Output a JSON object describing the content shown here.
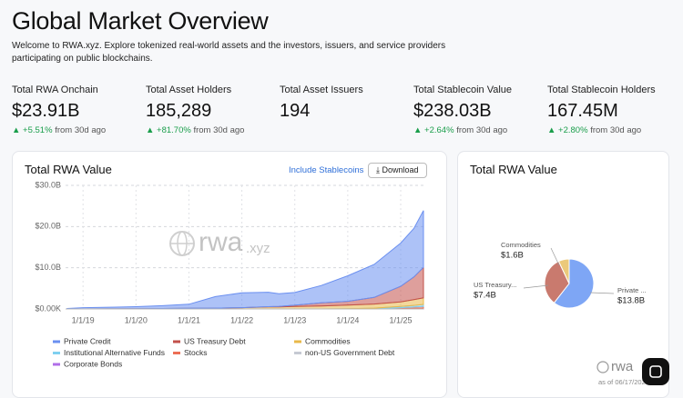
{
  "header": {
    "title": "Global Market Overview",
    "subtitle": "Welcome to RWA.xyz. Explore tokenized real-world assets and the investors, issuers, and service providers participating on public blockchains."
  },
  "stats": [
    {
      "label": "Total RWA Onchain",
      "value": "$23.91B",
      "change": "+5.51%",
      "period": "from 30d ago"
    },
    {
      "label": "Total Asset Holders",
      "value": "185,289",
      "change": "+81.70%",
      "period": "from 30d ago"
    },
    {
      "label": "Total Asset Issuers",
      "value": "194",
      "change": "",
      "period": ""
    },
    {
      "label": "Total Stablecoin Value",
      "value": "$238.03B",
      "change": "+2.64%",
      "period": "from 30d ago"
    },
    {
      "label": "Total Stablecoin Holders",
      "value": "167.45M",
      "change": "+2.80%",
      "period": "from 30d ago"
    }
  ],
  "controls": {
    "stablecoins": "Include Stablecoins",
    "download": "Download"
  },
  "watermark": {
    "main": "rwa",
    "suffix": ".xyz"
  },
  "footer": {
    "brand": "rwa",
    "asof": "as of 06/17/202"
  },
  "chart_data": [
    {
      "type": "stacked-area",
      "title": "Total RWA Value",
      "x": [
        2018.7,
        2019,
        2019.5,
        2020,
        2020.5,
        2021,
        2021.5,
        2022,
        2022.5,
        2022.7,
        2023,
        2023.5,
        2024,
        2024.5,
        2025,
        2025.25,
        2025.43
      ],
      "xlim": [
        2018.67,
        2025.43
      ],
      "xticks": [
        {
          "value": 2019,
          "label": "1/1/19"
        },
        {
          "value": 2020,
          "label": "1/1/20"
        },
        {
          "value": 2021,
          "label": "1/1/21"
        },
        {
          "value": 2022,
          "label": "1/1/22"
        },
        {
          "value": 2023,
          "label": "1/1/23"
        },
        {
          "value": 2024,
          "label": "1/1/24"
        },
        {
          "value": 2025,
          "label": "1/1/25"
        }
      ],
      "ylim": [
        0,
        30
      ],
      "yticks": [
        {
          "value": 0,
          "label": "$0.00K"
        },
        {
          "value": 10,
          "label": "$10.0B"
        },
        {
          "value": 20,
          "label": "$20.0B"
        },
        {
          "value": 30,
          "label": "$30.0B"
        }
      ],
      "grid": true,
      "series": [
        {
          "name": "Private Credit",
          "color": "#6a8ff0",
          "values": [
            0.1,
            0.3,
            0.4,
            0.5,
            0.7,
            1.0,
            2.8,
            3.6,
            3.5,
            3.1,
            3.1,
            4.2,
            6.2,
            8.0,
            10.5,
            11.8,
            13.8
          ]
        },
        {
          "name": "US Treasury Debt",
          "color": "#c2504a",
          "values": [
            0,
            0,
            0,
            0,
            0,
            0,
            0,
            0,
            0.05,
            0.1,
            0.3,
            0.8,
            0.9,
            1.6,
            3.8,
            5.5,
            7.4
          ]
        },
        {
          "name": "Commodities",
          "color": "#e8b84a",
          "values": [
            0,
            0.01,
            0.02,
            0.05,
            0.1,
            0.15,
            0.2,
            0.3,
            0.5,
            0.5,
            0.6,
            0.7,
            0.9,
            1.0,
            1.1,
            1.4,
            1.6
          ]
        },
        {
          "name": "Institutional Alternative Funds",
          "color": "#7fd0f0",
          "values": [
            0,
            0,
            0,
            0,
            0,
            0,
            0,
            0,
            0,
            0,
            0,
            0,
            0.05,
            0.15,
            0.3,
            0.4,
            0.5
          ]
        },
        {
          "name": "Stocks",
          "color": "#ec6f55",
          "values": [
            0,
            0,
            0,
            0,
            0,
            0,
            0,
            0,
            0,
            0,
            0,
            0,
            0,
            0.05,
            0.2,
            0.3,
            0.4
          ]
        },
        {
          "name": "non-US Government Debt",
          "color": "#c6cad3",
          "values": [
            0,
            0,
            0,
            0,
            0,
            0,
            0,
            0,
            0,
            0,
            0,
            0,
            0,
            0,
            0.05,
            0.08,
            0.1
          ]
        },
        {
          "name": "Corporate Bonds",
          "color": "#b06ee8",
          "values": [
            0,
            0,
            0,
            0,
            0,
            0,
            0,
            0,
            0,
            0,
            0,
            0,
            0,
            0,
            0.05,
            0.08,
            0.1
          ]
        }
      ]
    },
    {
      "type": "pie",
      "title": "Total RWA Value",
      "categories": [
        "Private ...",
        "US Treasury...",
        "Commodities"
      ],
      "values": [
        13.8,
        7.4,
        1.6
      ],
      "value_labels": [
        "$13.8B",
        "$7.4B",
        "$1.6B"
      ],
      "colors": [
        "#7ea6f5",
        "#c97a6e",
        "#ebc97a"
      ]
    }
  ]
}
